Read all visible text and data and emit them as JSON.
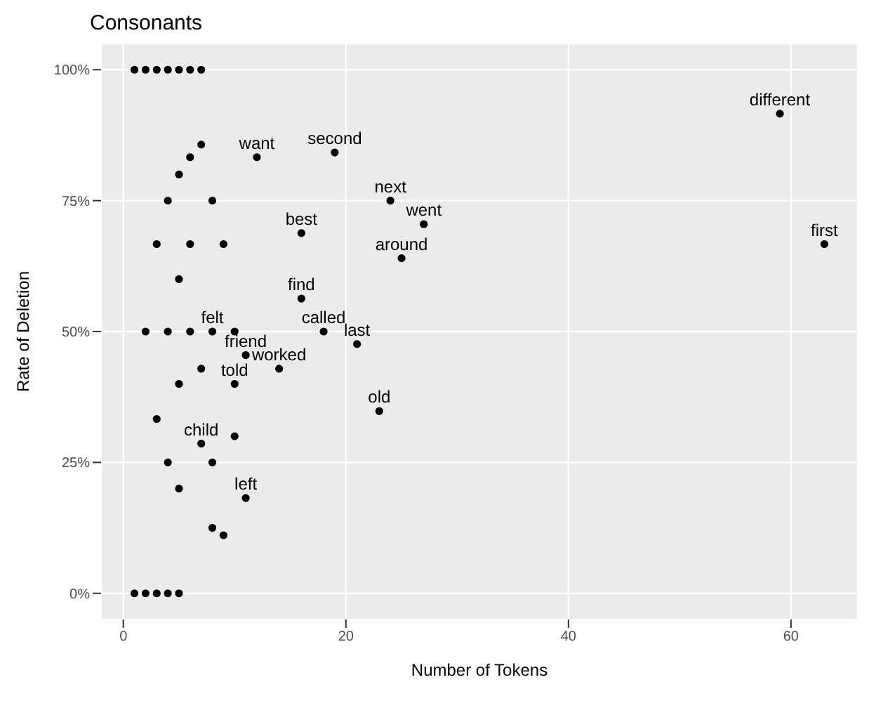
{
  "chart_data": {
    "type": "scatter",
    "title": "Consonants",
    "xlabel": "Number of Tokens",
    "ylabel": "Rate of Deletion",
    "x": [
      1,
      2,
      3,
      4,
      5,
      6,
      7,
      7,
      6,
      5,
      4,
      8,
      12,
      19,
      24,
      27,
      25,
      16,
      3,
      6,
      9,
      59,
      63,
      5,
      16,
      2,
      4,
      6,
      8,
      10,
      18,
      21,
      11,
      7,
      5,
      10,
      14,
      3,
      10,
      7,
      4,
      8,
      5,
      11,
      8,
      9,
      23,
      1,
      2,
      3,
      4,
      5
    ],
    "series": [
      {
        "color": "#000000",
        "values": [
          100,
          100,
          100,
          100,
          100,
          100,
          100,
          85.7,
          83.3,
          80,
          75,
          75,
          83.3,
          84.2,
          75,
          70.5,
          64,
          68.8,
          66.7,
          66.7,
          66.7,
          91.6,
          66.7,
          60,
          56.3,
          50,
          50,
          50,
          50,
          50,
          50,
          47.6,
          45.5,
          42.9,
          40,
          40,
          42.9,
          33.3,
          30,
          28.6,
          25,
          25,
          20,
          18.2,
          12.5,
          11.1,
          34.8,
          0,
          0,
          0,
          0,
          0
        ]
      }
    ],
    "annotations": [
      {
        "text": "want",
        "x": 12,
        "y": 83.3
      },
      {
        "text": "second",
        "x": 19,
        "y": 84.2
      },
      {
        "text": "next",
        "x": 24,
        "y": 75
      },
      {
        "text": "went",
        "x": 27,
        "y": 70.5
      },
      {
        "text": "around",
        "x": 25,
        "y": 64
      },
      {
        "text": "best",
        "x": 16,
        "y": 68.8
      },
      {
        "text": "different",
        "x": 59,
        "y": 91.6
      },
      {
        "text": "first",
        "x": 63,
        "y": 66.7
      },
      {
        "text": "find",
        "x": 16,
        "y": 56.3
      },
      {
        "text": "felt",
        "x": 8,
        "y": 50
      },
      {
        "text": "called",
        "x": 18,
        "y": 50
      },
      {
        "text": "friend",
        "x": 11,
        "y": 45.5
      },
      {
        "text": "last",
        "x": 21,
        "y": 47.6
      },
      {
        "text": "worked",
        "x": 14,
        "y": 42.9
      },
      {
        "text": "told",
        "x": 10,
        "y": 40
      },
      {
        "text": "old",
        "x": 23,
        "y": 34.8
      },
      {
        "text": "child",
        "x": 7,
        "y": 28.6
      },
      {
        "text": "left",
        "x": 11,
        "y": 18.2
      }
    ],
    "xlim": [
      -2,
      66
    ],
    "xticks": [
      0,
      20,
      40,
      60
    ],
    "ylim": [
      -5,
      105
    ],
    "yticks": [
      {
        "value": 0,
        "label": "0%"
      },
      {
        "value": 25,
        "label": "25%"
      },
      {
        "value": 50,
        "label": "50%"
      },
      {
        "value": 75,
        "label": "75%"
      },
      {
        "value": 100,
        "label": "100%"
      }
    ],
    "grid": true,
    "marker": "circle"
  }
}
